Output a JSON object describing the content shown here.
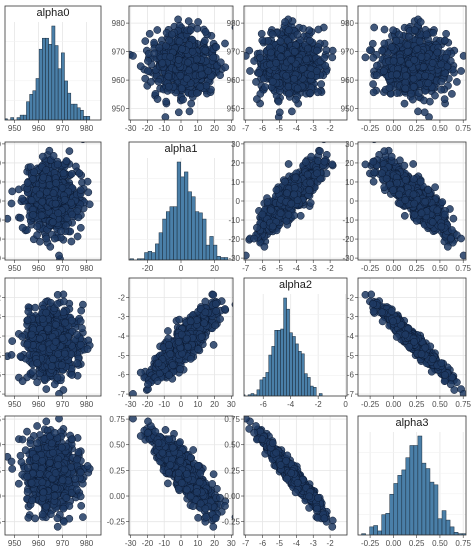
{
  "chart_data": {
    "type": "scatter",
    "title": "",
    "layout": "pairs-matrix",
    "n_draws": 700,
    "colors": {
      "point_fill": "#1f3a63",
      "point_stroke": "#0b1a33",
      "hist_fill": "#4a7fa8",
      "hist_stroke": "#1a2a3a",
      "grid": "#e6e6e6",
      "border": "#333333"
    },
    "grid": true,
    "variables": [
      {
        "name": "alpha0",
        "title": "alpha0",
        "range": [
          946,
          986
        ],
        "ticks": [
          950,
          960,
          970,
          980
        ],
        "tick_labels": [
          "950",
          "960",
          "970",
          "980"
        ],
        "mean": 965.5,
        "sd": 5.5
      },
      {
        "name": "alpha1",
        "title": "alpha1",
        "range": [
          -31,
          31
        ],
        "ticks": [
          -30,
          -20,
          -10,
          0,
          10,
          20,
          30
        ],
        "tick_labels": [
          "-30",
          "-20",
          "-10",
          "0",
          "10",
          "20",
          "30"
        ],
        "mean": 2.0,
        "sd": 9.0
      },
      {
        "name": "alpha2",
        "title": "alpha2",
        "range": [
          -7.1,
          -1.0
        ],
        "ticks": [
          -7,
          -6,
          -5,
          -4,
          -3,
          -2
        ],
        "tick_labels": [
          "-7",
          "-6",
          "-5",
          "-4",
          "-3",
          "-2"
        ],
        "mean": -4.3,
        "sd": 0.9
      },
      {
        "name": "alpha3",
        "title": "alpha3",
        "range": [
          -0.38,
          0.78
        ],
        "ticks": [
          -0.25,
          0.0,
          0.25,
          0.5,
          0.75
        ],
        "tick_labels": [
          "-0.25",
          "0.00",
          "0.25",
          "0.50",
          "0.75"
        ],
        "mean": 0.22,
        "sd": 0.18
      }
    ],
    "diag_axes": [
      {
        "ticks": [
          950,
          960,
          970,
          980
        ],
        "tick_labels": [
          "950",
          "960",
          "970",
          "980"
        ]
      },
      {
        "ticks": [
          -20,
          0,
          20
        ],
        "tick_labels": [
          "-20",
          "0",
          "20"
        ]
      },
      {
        "ticks": [
          -6,
          -4,
          -2,
          0
        ],
        "tick_labels": [
          "-6",
          "-4",
          "-2",
          "0"
        ],
        "range": [
          -7.4,
          0.1
        ]
      },
      {
        "ticks": [
          -0.25,
          0.0,
          0.25,
          0.5,
          0.75
        ],
        "tick_labels": [
          "-0.25",
          "0.00",
          "0.25",
          "0.50",
          "0.75"
        ]
      }
    ],
    "correlations": [
      [
        1.0,
        0.0,
        0.0,
        0.0
      ],
      [
        0.0,
        1.0,
        0.85,
        -0.85
      ],
      [
        0.0,
        0.85,
        1.0,
        -0.97
      ],
      [
        0.0,
        -0.85,
        -0.97,
        1.0
      ]
    ],
    "histogram_bins": 30
  }
}
